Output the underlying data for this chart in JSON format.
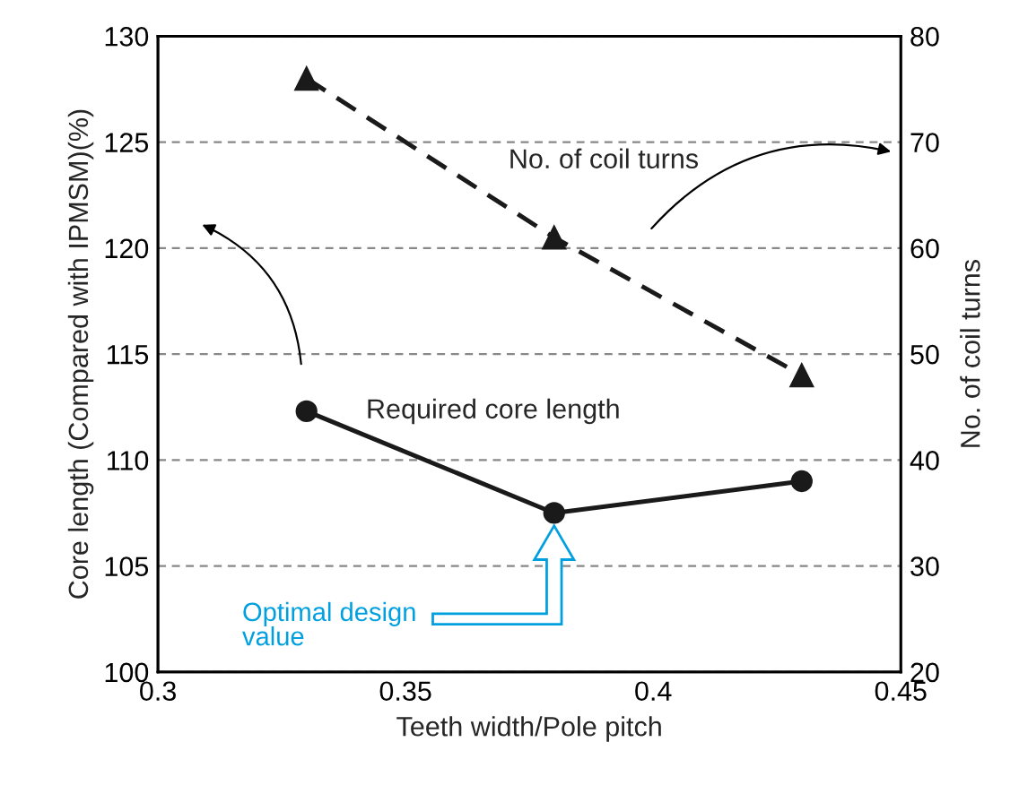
{
  "chart_data": {
    "type": "line",
    "xlabel": "Teeth width/Pole pitch",
    "ylabel": "Core length (Compared with IPMSM)(%)",
    "y2label": "No. of coil turns",
    "x": [
      0.33,
      0.38,
      0.43
    ],
    "series": [
      {
        "name": "Required core length",
        "color": "#1a1a1a",
        "values": [
          112.3,
          107.5,
          109.0
        ],
        "marker": "circle",
        "line_style": "solid"
      },
      {
        "name": "No. of coil turns",
        "color": "#1a1a1a",
        "values": [
          76,
          61,
          48
        ],
        "axis": "y2",
        "marker": "triangle",
        "line_style": "dashed"
      }
    ],
    "xlim": [
      0.3,
      0.45
    ],
    "xticks": [
      0.3,
      0.35,
      0.4,
      0.45
    ],
    "ylim": [
      100,
      130
    ],
    "yticks": [
      100,
      105,
      110,
      115,
      120,
      125,
      130
    ],
    "y2lim": [
      20,
      80
    ],
    "y2ticks": [
      20,
      30,
      40,
      50,
      60,
      70,
      80
    ],
    "grid": "y",
    "legend": false,
    "annotations": [
      "Optimal design\nvalue"
    ]
  }
}
